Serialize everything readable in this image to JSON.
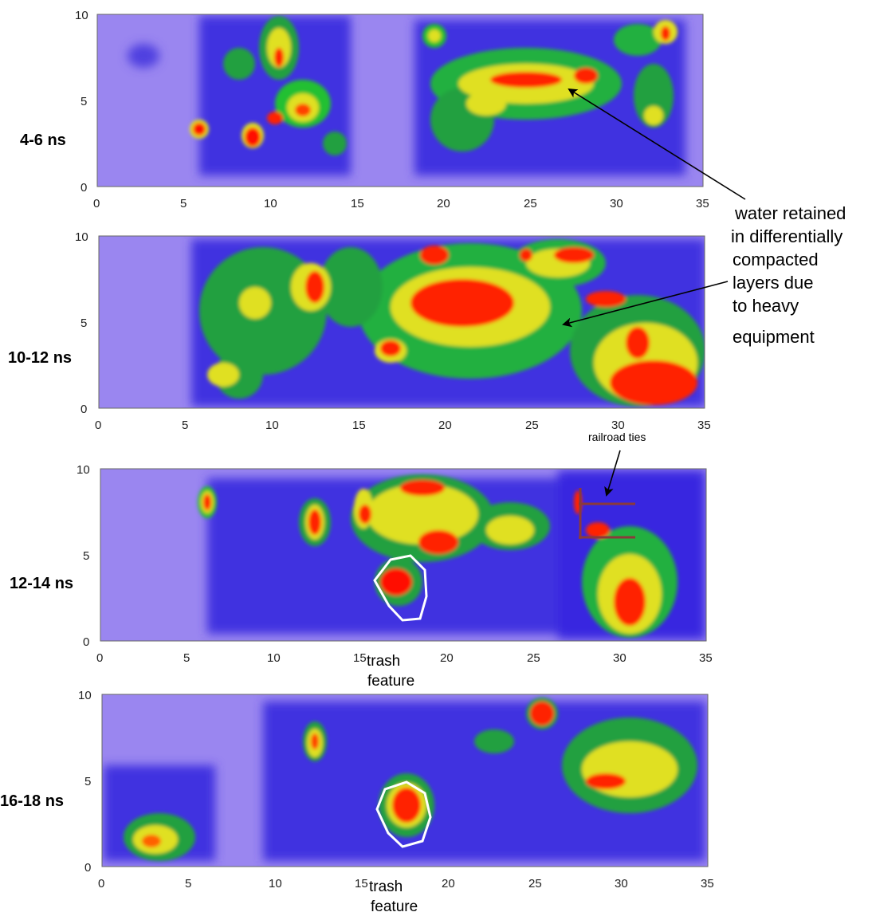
{
  "panels": [
    {
      "label": "4-6 ns",
      "xticks": [
        "0",
        "5",
        "10",
        "15",
        "20",
        "25",
        "30",
        "35"
      ],
      "yticks": [
        "0",
        "5",
        "10"
      ]
    },
    {
      "label": "10-12 ns",
      "xticks": [
        "0",
        "5",
        "10",
        "15",
        "20",
        "25",
        "30",
        "35"
      ],
      "yticks": [
        "0",
        "5",
        "10"
      ]
    },
    {
      "label": "12-14 ns",
      "xticks": [
        "0",
        "5",
        "10",
        "15",
        "20",
        "25",
        "30",
        "35"
      ],
      "yticks": [
        "0",
        "5",
        "10"
      ]
    },
    {
      "label": "16-18 ns",
      "xticks": [
        "0",
        "5",
        "10",
        "15",
        "20",
        "25",
        "30",
        "35"
      ],
      "yticks": [
        "0",
        "5",
        "10"
      ]
    }
  ],
  "annotations": {
    "water_lines": [
      "water retained",
      "in differentially",
      "compacted",
      "layers due",
      "to heavy",
      "equipment"
    ],
    "railroad": "railroad ties",
    "trash_line1": "trash",
    "trash_line2": "feature"
  },
  "colors": {
    "background": "#9a86f0",
    "low": "#3b2fe6",
    "mid": "#1a8f3a",
    "green": "#20e020",
    "yellow": "#e8ea10",
    "high": "#ff1a00",
    "outline": "#ffffff",
    "rail": "#8b3a3a"
  },
  "extent": {
    "x": [
      0,
      35
    ],
    "y": [
      0,
      10
    ]
  }
}
